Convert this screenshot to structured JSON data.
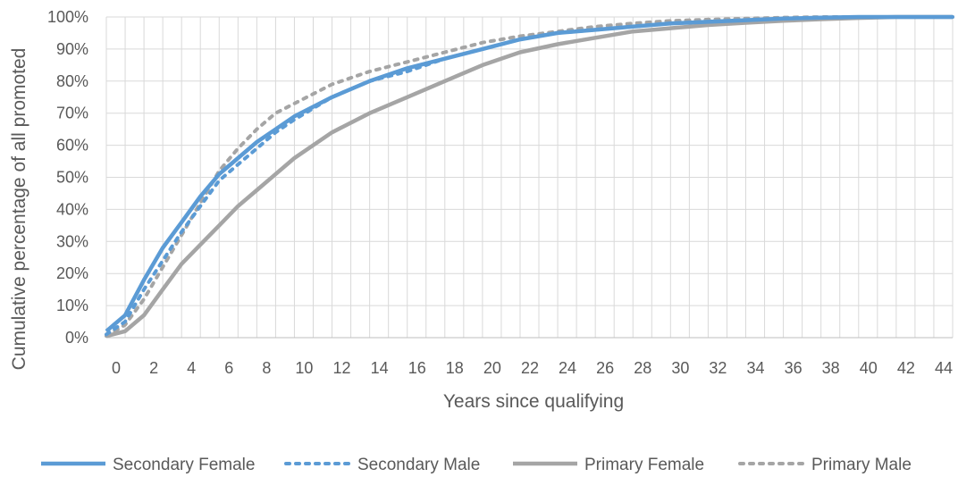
{
  "chart_data": {
    "type": "line",
    "title": "",
    "xlabel": "Years since qualifying",
    "ylabel": "Cumulative percentage of all promoted",
    "xlim": [
      0,
      45
    ],
    "ylim": [
      0,
      100
    ],
    "x_ticks": [
      0,
      2,
      4,
      6,
      8,
      10,
      12,
      14,
      16,
      18,
      20,
      22,
      24,
      26,
      28,
      30,
      32,
      34,
      36,
      38,
      40,
      42,
      44
    ],
    "x_tick_labels": [
      "0",
      "2",
      "4",
      "6",
      "8",
      "10",
      "12",
      "14",
      "16",
      "18",
      "20",
      "22",
      "24",
      "26",
      "28",
      "30",
      "32",
      "34",
      "36",
      "38",
      "40",
      "42",
      "44"
    ],
    "y_ticks": [
      0,
      10,
      20,
      30,
      40,
      50,
      60,
      70,
      80,
      90,
      100
    ],
    "y_tick_labels": [
      "0%",
      "10%",
      "20%",
      "30%",
      "40%",
      "50%",
      "60%",
      "70%",
      "80%",
      "90%",
      "100%"
    ],
    "grid": true,
    "legend_position": "bottom",
    "series": [
      {
        "name": "Secondary Female",
        "color": "#5b9bd5",
        "style": "solid",
        "x": [
          0,
          1,
          2,
          3,
          4,
          5,
          6,
          7,
          8,
          9,
          10,
          12,
          14,
          16,
          18,
          20,
          22,
          24,
          26,
          28,
          30,
          32,
          34,
          36,
          38,
          40,
          42,
          45
        ],
        "values": [
          2,
          7,
          18,
          28,
          36,
          44,
          51,
          56,
          61,
          65,
          69,
          75,
          80,
          84,
          87,
          90,
          93,
          95,
          96,
          97,
          98,
          98.5,
          99,
          99.5,
          99.8,
          100,
          100,
          100
        ]
      },
      {
        "name": "Secondary Male",
        "color": "#5b9bd5",
        "style": "dotted",
        "x": [
          0,
          1,
          2,
          3,
          4,
          5,
          6,
          7,
          8,
          9,
          10,
          12,
          14,
          16,
          18,
          20,
          22,
          24,
          26,
          28,
          30,
          32,
          34,
          36,
          38,
          40,
          42,
          45
        ],
        "values": [
          1,
          5,
          15,
          24,
          33,
          41,
          49,
          54,
          59,
          64,
          68,
          75,
          80,
          83,
          87,
          90,
          93,
          95,
          96,
          97,
          98,
          98.5,
          99,
          99.5,
          99.8,
          100,
          100,
          100
        ]
      },
      {
        "name": "Primary Female",
        "color": "#a5a5a5",
        "style": "solid",
        "x": [
          0,
          1,
          2,
          3,
          4,
          5,
          6,
          7,
          8,
          9,
          10,
          12,
          14,
          16,
          18,
          20,
          22,
          24,
          26,
          28,
          30,
          32,
          34,
          36,
          38,
          40,
          42,
          45
        ],
        "values": [
          0.5,
          2,
          7,
          15,
          23,
          29,
          35,
          41,
          46,
          51,
          56,
          64,
          70,
          75,
          80,
          85,
          89,
          91.5,
          93.5,
          95.5,
          96.5,
          97.5,
          98.2,
          98.8,
          99.3,
          99.7,
          100,
          100
        ]
      },
      {
        "name": "Primary Male",
        "color": "#a5a5a5",
        "style": "dotted",
        "x": [
          0,
          1,
          2,
          3,
          4,
          5,
          6,
          7,
          8,
          9,
          10,
          12,
          14,
          16,
          18,
          20,
          22,
          24,
          26,
          28,
          30,
          32,
          34,
          36,
          38,
          40,
          42,
          45
        ],
        "values": [
          0.5,
          4,
          12,
          22,
          32,
          42,
          52,
          59,
          65,
          70,
          73,
          79,
          83,
          86,
          89,
          92,
          94,
          95.5,
          97,
          98,
          98.8,
          99.2,
          99.5,
          99.8,
          100,
          100,
          100,
          100
        ]
      }
    ]
  }
}
